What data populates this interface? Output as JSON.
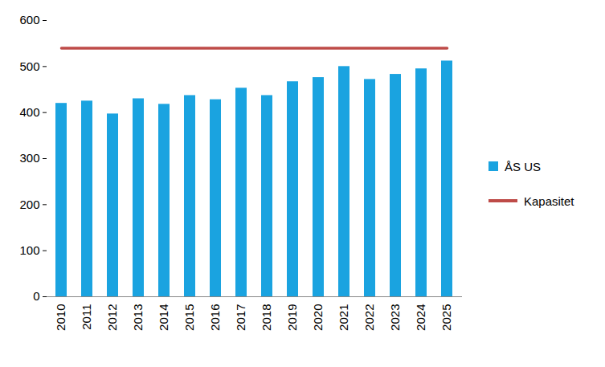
{
  "chart_data": {
    "type": "bar",
    "categories": [
      "2010",
      "2011",
      "2012",
      "2013",
      "2014",
      "2015",
      "2016",
      "2017",
      "2018",
      "2019",
      "2020",
      "2021",
      "2022",
      "2023",
      "2024",
      "2025"
    ],
    "series": [
      {
        "name": "ÅS US",
        "type": "bar",
        "color": "#1aa3e0",
        "values": [
          420,
          425,
          397,
          430,
          418,
          437,
          428,
          453,
          437,
          467,
          476,
          500,
          472,
          483,
          495,
          512
        ]
      },
      {
        "name": "Kapasitet",
        "type": "line",
        "color": "#be4b48",
        "values": [
          540,
          540,
          540,
          540,
          540,
          540,
          540,
          540,
          540,
          540,
          540,
          540,
          540,
          540,
          540,
          540
        ]
      }
    ],
    "ylim": [
      0,
      600
    ],
    "yticks": [
      0,
      100,
      200,
      300,
      400,
      500,
      600
    ],
    "grid": false,
    "legend": "right"
  }
}
